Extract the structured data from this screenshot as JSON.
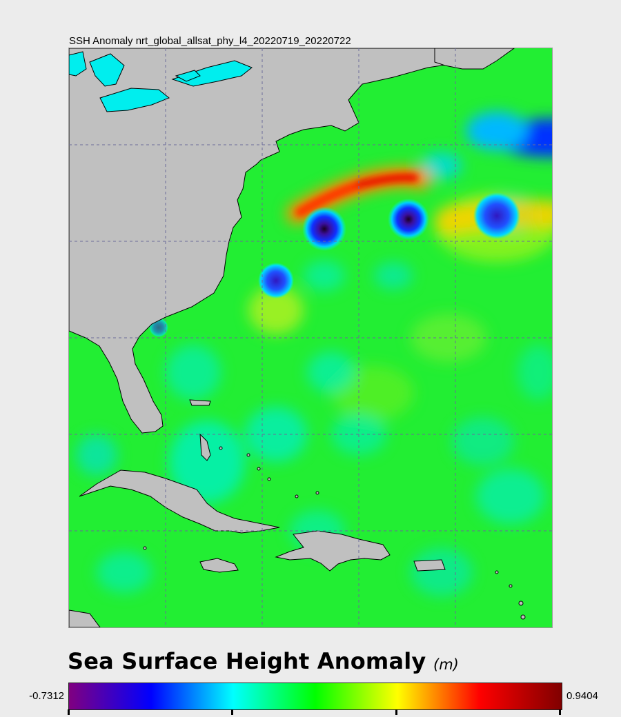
{
  "map": {
    "title": "SSH Anomaly nrt_global_allsat_phy_l4_20220719_20220722",
    "colors": {
      "ocean_base": "#22ee33",
      "land": "#c0c0c0",
      "coast": "#000000",
      "lakes": "#00eeee",
      "gridline": "#6b6b9a"
    }
  },
  "legend": {
    "title": "Sea Surface Height Anomaly",
    "unit": "(m)",
    "min": "-0.7312",
    "max": "0.9404",
    "colormap": [
      "#800080",
      "#0000ff",
      "#00ffff",
      "#00ff00",
      "#ffff00",
      "#ff0000",
      "#800000"
    ]
  }
}
